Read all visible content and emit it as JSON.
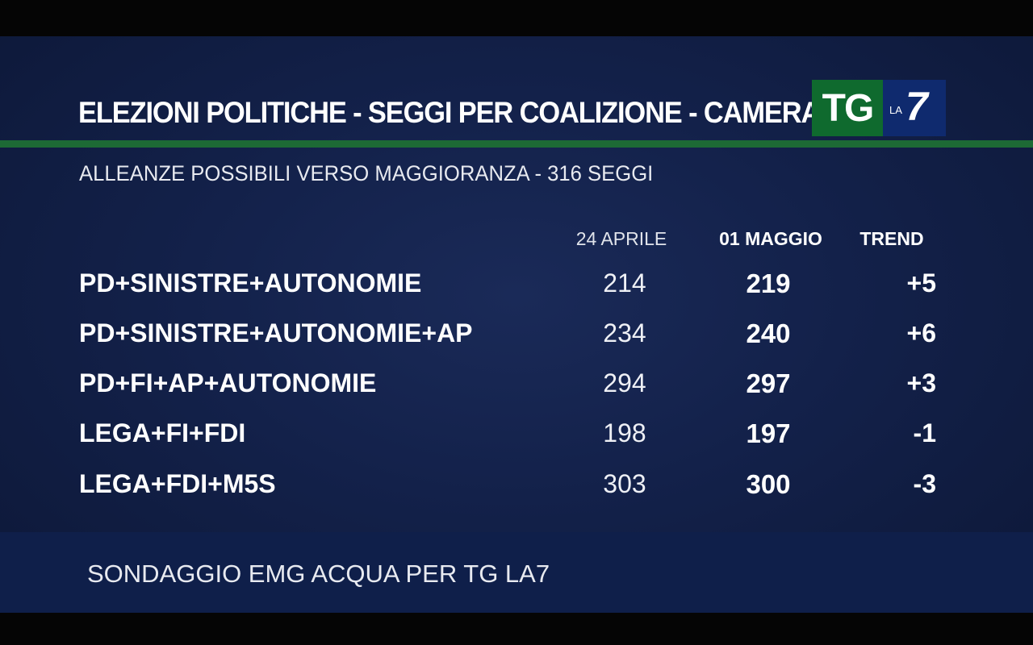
{
  "title": "ELEZIONI POLITICHE - SEGGI PER COALIZIONE - CAMERA",
  "logo": {
    "tg": "TG",
    "la": "LA",
    "seven": "7"
  },
  "subtitle": "ALLEANZE POSSIBILI VERSO MAGGIORANZA - 316 SEGGI",
  "columns": {
    "col1": "24 APRILE",
    "col2": "01 MAGGIO",
    "col3": "TREND"
  },
  "rows": [
    {
      "label": "PD+SINISTRE+AUTONOMIE",
      "v1": "214",
      "v2": "219",
      "trend": "+5"
    },
    {
      "label": "PD+SINISTRE+AUTONOMIE+AP",
      "v1": "234",
      "v2": "240",
      "trend": "+6"
    },
    {
      "label": "PD+FI+AP+AUTONOMIE",
      "v1": "294",
      "v2": "297",
      "trend": "+3"
    },
    {
      "label": "LEGA+FI+FDI",
      "v1": "198",
      "v2": "197",
      "trend": "-1"
    },
    {
      "label": "LEGA+FDI+M5S",
      "v1": "303",
      "v2": "300",
      "trend": "-3"
    }
  ],
  "source": "SONDAGGIO EMG ACQUA PER TG LA7",
  "colors": {
    "background": "#13214a",
    "accent_green": "#1d6a35",
    "logo_green": "#0f6a2e",
    "logo_blue": "#0f2a6e"
  }
}
